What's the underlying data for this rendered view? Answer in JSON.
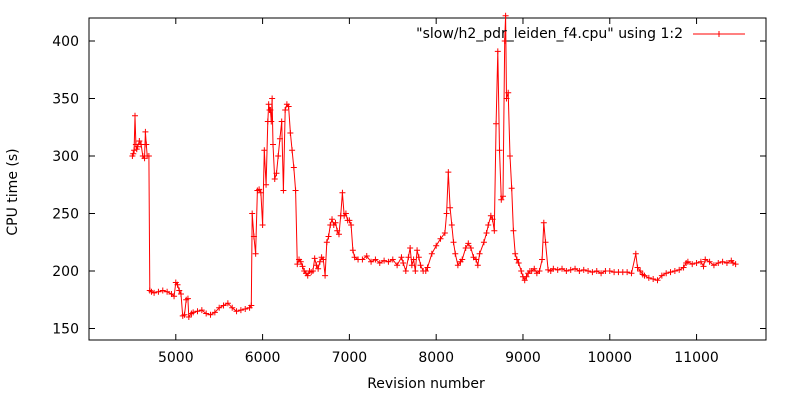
{
  "chart_data": {
    "type": "line",
    "xlabel": "Revision number",
    "ylabel": "CPU time (s)",
    "xlim": [
      4000,
      11800
    ],
    "ylim": [
      140,
      420
    ],
    "xticks": [
      5000,
      6000,
      7000,
      8000,
      9000,
      10000,
      11000
    ],
    "yticks": [
      150,
      200,
      250,
      300,
      350,
      400
    ],
    "grid": false,
    "legend_position": "top-right",
    "series": [
      {
        "name": "\"slow/h2_pdr_leiden_f4.cpu\" using 1:2",
        "color": "#ff0000",
        "marker": "plus",
        "points": [
          [
            4500,
            300
          ],
          [
            4510,
            302
          ],
          [
            4520,
            305
          ],
          [
            4530,
            335
          ],
          [
            4540,
            310
          ],
          [
            4550,
            306
          ],
          [
            4560,
            308
          ],
          [
            4580,
            313
          ],
          [
            4600,
            310
          ],
          [
            4620,
            300
          ],
          [
            4640,
            298
          ],
          [
            4650,
            321
          ],
          [
            4660,
            310
          ],
          [
            4670,
            300
          ],
          [
            4690,
            300
          ],
          [
            4700,
            183
          ],
          [
            4720,
            182
          ],
          [
            4750,
            181
          ],
          [
            4800,
            182
          ],
          [
            4850,
            183
          ],
          [
            4900,
            182
          ],
          [
            4950,
            180
          ],
          [
            4980,
            178
          ],
          [
            5000,
            190
          ],
          [
            5020,
            188
          ],
          [
            5040,
            183
          ],
          [
            5060,
            180
          ],
          [
            5080,
            161
          ],
          [
            5100,
            162
          ],
          [
            5120,
            175
          ],
          [
            5140,
            176
          ],
          [
            5150,
            160
          ],
          [
            5180,
            163
          ],
          [
            5200,
            164
          ],
          [
            5250,
            165
          ],
          [
            5300,
            166
          ],
          [
            5350,
            163
          ],
          [
            5400,
            162
          ],
          [
            5450,
            164
          ],
          [
            5500,
            168
          ],
          [
            5550,
            170
          ],
          [
            5600,
            172
          ],
          [
            5650,
            168
          ],
          [
            5700,
            165
          ],
          [
            5750,
            166
          ],
          [
            5800,
            167
          ],
          [
            5850,
            168
          ],
          [
            5870,
            170
          ],
          [
            5880,
            250
          ],
          [
            5900,
            230
          ],
          [
            5920,
            215
          ],
          [
            5940,
            270
          ],
          [
            5960,
            271
          ],
          [
            5980,
            268
          ],
          [
            6000,
            240
          ],
          [
            6020,
            305
          ],
          [
            6040,
            275
          ],
          [
            6060,
            330
          ],
          [
            6070,
            345
          ],
          [
            6080,
            340
          ],
          [
            6090,
            340
          ],
          [
            6100,
            330
          ],
          [
            6110,
            350
          ],
          [
            6120,
            310
          ],
          [
            6140,
            280
          ],
          [
            6160,
            285
          ],
          [
            6180,
            300
          ],
          [
            6200,
            315
          ],
          [
            6220,
            330
          ],
          [
            6240,
            270
          ],
          [
            6260,
            340
          ],
          [
            6280,
            345
          ],
          [
            6300,
            343
          ],
          [
            6320,
            320
          ],
          [
            6340,
            305
          ],
          [
            6360,
            290
          ],
          [
            6380,
            270
          ],
          [
            6400,
            206
          ],
          [
            6420,
            210
          ],
          [
            6440,
            208
          ],
          [
            6460,
            204
          ],
          [
            6480,
            200
          ],
          [
            6500,
            198
          ],
          [
            6520,
            196
          ],
          [
            6540,
            200
          ],
          [
            6560,
            199
          ],
          [
            6580,
            200
          ],
          [
            6600,
            211
          ],
          [
            6620,
            205
          ],
          [
            6640,
            202
          ],
          [
            6660,
            208
          ],
          [
            6680,
            212
          ],
          [
            6700,
            210
          ],
          [
            6720,
            196
          ],
          [
            6740,
            225
          ],
          [
            6760,
            230
          ],
          [
            6780,
            240
          ],
          [
            6800,
            245
          ],
          [
            6820,
            240
          ],
          [
            6840,
            242
          ],
          [
            6860,
            235
          ],
          [
            6880,
            232
          ],
          [
            6900,
            248
          ],
          [
            6920,
            268
          ],
          [
            6940,
            248
          ],
          [
            6960,
            250
          ],
          [
            6980,
            244
          ],
          [
            7000,
            244
          ],
          [
            7020,
            240
          ],
          [
            7040,
            218
          ],
          [
            7060,
            212
          ],
          [
            7100,
            210
          ],
          [
            7150,
            210
          ],
          [
            7200,
            213
          ],
          [
            7250,
            208
          ],
          [
            7300,
            210
          ],
          [
            7350,
            207
          ],
          [
            7400,
            209
          ],
          [
            7450,
            208
          ],
          [
            7500,
            210
          ],
          [
            7550,
            205
          ],
          [
            7600,
            212
          ],
          [
            7620,
            207
          ],
          [
            7650,
            200
          ],
          [
            7680,
            212
          ],
          [
            7700,
            220
          ],
          [
            7720,
            205
          ],
          [
            7740,
            210
          ],
          [
            7760,
            200
          ],
          [
            7780,
            218
          ],
          [
            7800,
            212
          ],
          [
            7820,
            205
          ],
          [
            7850,
            200
          ],
          [
            7880,
            200
          ],
          [
            7900,
            203
          ],
          [
            7950,
            215
          ],
          [
            8000,
            222
          ],
          [
            8050,
            228
          ],
          [
            8100,
            233
          ],
          [
            8120,
            250
          ],
          [
            8140,
            286
          ],
          [
            8160,
            255
          ],
          [
            8180,
            240
          ],
          [
            8200,
            225
          ],
          [
            8220,
            215
          ],
          [
            8250,
            205
          ],
          [
            8280,
            208
          ],
          [
            8300,
            210
          ],
          [
            8340,
            220
          ],
          [
            8370,
            224
          ],
          [
            8400,
            220
          ],
          [
            8430,
            212
          ],
          [
            8460,
            210
          ],
          [
            8480,
            205
          ],
          [
            8500,
            215
          ],
          [
            8550,
            225
          ],
          [
            8580,
            233
          ],
          [
            8600,
            240
          ],
          [
            8630,
            248
          ],
          [
            8650,
            245
          ],
          [
            8670,
            235
          ],
          [
            8690,
            328
          ],
          [
            8710,
            391
          ],
          [
            8730,
            305
          ],
          [
            8750,
            262
          ],
          [
            8770,
            265
          ],
          [
            8790,
            400
          ],
          [
            8800,
            422
          ],
          [
            8810,
            350
          ],
          [
            8830,
            355
          ],
          [
            8850,
            300
          ],
          [
            8870,
            272
          ],
          [
            8890,
            235
          ],
          [
            8910,
            215
          ],
          [
            8930,
            210
          ],
          [
            8950,
            207
          ],
          [
            8980,
            200
          ],
          [
            9000,
            195
          ],
          [
            9020,
            192
          ],
          [
            9040,
            195
          ],
          [
            9060,
            198
          ],
          [
            9080,
            200
          ],
          [
            9100,
            200
          ],
          [
            9130,
            202
          ],
          [
            9160,
            198
          ],
          [
            9190,
            200
          ],
          [
            9220,
            210
          ],
          [
            9240,
            242
          ],
          [
            9260,
            225
          ],
          [
            9290,
            201
          ],
          [
            9320,
            200
          ],
          [
            9350,
            202
          ],
          [
            9400,
            201
          ],
          [
            9450,
            202
          ],
          [
            9500,
            200
          ],
          [
            9550,
            201
          ],
          [
            9600,
            202
          ],
          [
            9650,
            200
          ],
          [
            9700,
            201
          ],
          [
            9750,
            200
          ],
          [
            9800,
            199
          ],
          [
            9850,
            200
          ],
          [
            9900,
            198
          ],
          [
            9950,
            200
          ],
          [
            10000,
            200
          ],
          [
            10050,
            199
          ],
          [
            10100,
            199
          ],
          [
            10150,
            199
          ],
          [
            10200,
            199
          ],
          [
            10250,
            198
          ],
          [
            10300,
            215
          ],
          [
            10320,
            203
          ],
          [
            10350,
            200
          ],
          [
            10380,
            197
          ],
          [
            10400,
            196
          ],
          [
            10450,
            194
          ],
          [
            10500,
            193
          ],
          [
            10550,
            192
          ],
          [
            10600,
            196
          ],
          [
            10650,
            198
          ],
          [
            10700,
            199
          ],
          [
            10750,
            200
          ],
          [
            10800,
            201
          ],
          [
            10850,
            203
          ],
          [
            10880,
            207
          ],
          [
            10900,
            208
          ],
          [
            10950,
            206
          ],
          [
            11000,
            207
          ],
          [
            11050,
            208
          ],
          [
            11080,
            204
          ],
          [
            11100,
            210
          ],
          [
            11150,
            208
          ],
          [
            11200,
            205
          ],
          [
            11250,
            207
          ],
          [
            11300,
            208
          ],
          [
            11350,
            207
          ],
          [
            11400,
            209
          ],
          [
            11420,
            207
          ],
          [
            11450,
            206
          ]
        ]
      }
    ]
  }
}
